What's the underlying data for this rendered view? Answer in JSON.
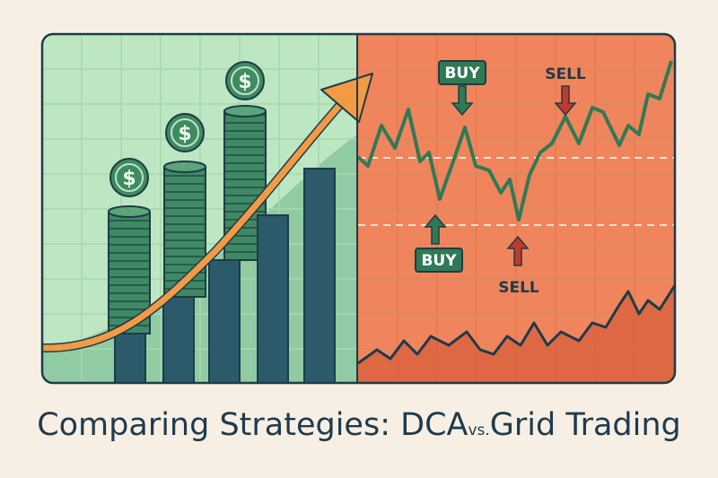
{
  "labels": {
    "buy_top": "BUY",
    "sell_top": "SELL",
    "buy_bottom": "BUY",
    "sell_bottom": "SELL",
    "coin_symbol": "$"
  },
  "title": {
    "main": "Comparing Strategies: DCA",
    "connector": "vs.",
    "end": "Grid Trading"
  }
}
